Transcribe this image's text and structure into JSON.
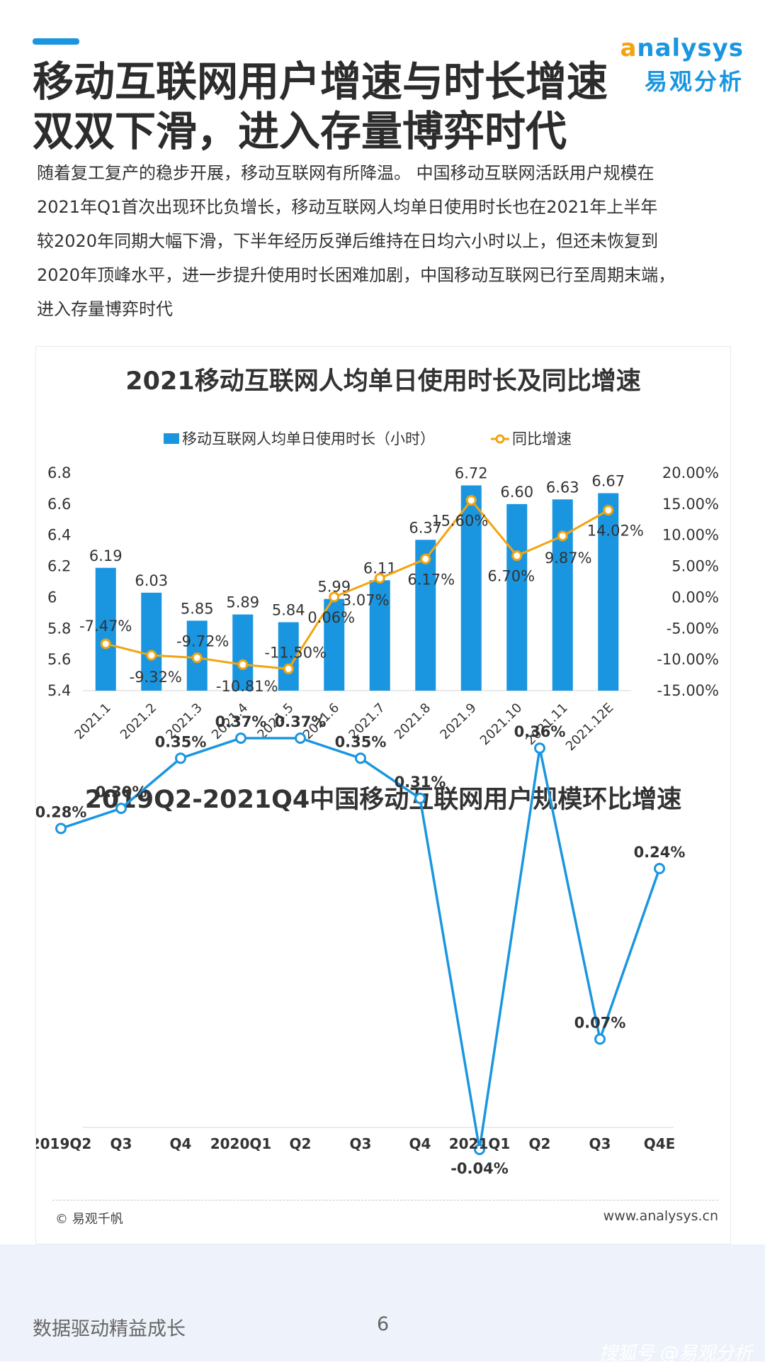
{
  "brand": {
    "logo_en_a": "a",
    "logo_en_rest": "nalysys",
    "logo_cn": "易观分析",
    "accent_color": "#1a96e0",
    "logo_accent_color": "#f2a40f"
  },
  "title_lines": [
    "移动互联网用户增速与时长增速",
    "双双下滑，进入存量博弈时代"
  ],
  "intro_lines": [
    "随着复工复产的稳步开展，移动互联网有所降温。 中国移动互联网活跃用户规模在",
    "2021年Q1首次出现环比负增长，移动互联网人均单日使用时长也在2021年上半年",
    "较2020年同期大幅下滑，下半年经历反弹后维持在日均六小时以上，但还未恢复到",
    "2020年顶峰水平，进一步提升使用时长困难加剧，中国移动互联网已行至周期末端，",
    "进入存量博弈时代"
  ],
  "chart_data": [
    {
      "type": "bar+line",
      "title": "2021移动互联网人均单日使用时长及同比增速",
      "legend_position": "top",
      "categories": [
        "2021.1",
        "2021.2",
        "2021.3",
        "2021.4",
        "2021.5",
        "2021.6",
        "2021.7",
        "2021.8",
        "2021.9",
        "2021.10",
        "2021.11",
        "2021.12E"
      ],
      "series": [
        {
          "name": "移动互联网人均单日使用时长（小时）",
          "kind": "bar",
          "axis": "left",
          "color": "#1a96e0",
          "values": [
            6.19,
            6.03,
            5.85,
            5.89,
            5.84,
            5.99,
            6.11,
            6.37,
            6.72,
            6.6,
            6.63,
            6.67
          ],
          "labels": [
            "6.19",
            "6.03",
            "5.85",
            "5.89",
            "5.84",
            "5.99",
            "6.11",
            "6.37",
            "6.72",
            "6.60",
            "6.63",
            "6.67"
          ]
        },
        {
          "name": "同比增速",
          "kind": "line",
          "axis": "right",
          "color": "#f2a40f",
          "values": [
            -7.47,
            -9.32,
            -9.72,
            -10.81,
            -11.5,
            0.06,
            3.07,
            6.17,
            15.6,
            6.7,
            9.87,
            14.02
          ],
          "labels": [
            "-7.47%",
            "-9.32%",
            "-9.72%",
            "-10.81%",
            "-11.50%",
            "0.06%",
            "3.07%",
            "6.17%",
            "15.60%",
            "6.70%",
            "9.87%",
            "14.02%"
          ]
        }
      ],
      "y_left_ticks": [
        "6.8",
        "6.6",
        "6.4",
        "6.2",
        "6",
        "5.8",
        "5.6",
        "5.4"
      ],
      "ylim_left": [
        5.4,
        6.8
      ],
      "y_right_ticks": [
        "20.00%",
        "15.00%",
        "10.00%",
        "5.00%",
        "0.00%",
        "-5.00%",
        "-10.00%",
        "-15.00%"
      ],
      "ylim_right": [
        -15,
        20
      ],
      "grid": false
    },
    {
      "type": "line",
      "title": "2019Q2-2021Q4中国移动互联网用户规模环比增速",
      "categories": [
        "2019Q2",
        "Q3",
        "Q4",
        "2020Q1",
        "Q2",
        "Q3",
        "Q4",
        "2021Q1",
        "Q2",
        "Q3",
        "Q4E"
      ],
      "series": [
        {
          "color": "#1a96e0",
          "values": [
            0.28,
            0.3,
            0.35,
            0.37,
            0.37,
            0.35,
            0.31,
            -0.04,
            0.36,
            0.07,
            0.24
          ],
          "labels": [
            "0.28%",
            "0.30%",
            "0.35%",
            "0.37%",
            "0.37%",
            "0.35%",
            "0.31%",
            "-0.04%",
            "0.36%",
            "0.07%",
            "0.24%"
          ]
        }
      ],
      "grid": false
    }
  ],
  "footer": {
    "source": "© 易观千帆",
    "website": "www.analysys.cn"
  },
  "bottom": {
    "slogan": "数据驱动精益成长",
    "page_number": "6",
    "credit": "搜狐号 @易观分析"
  }
}
